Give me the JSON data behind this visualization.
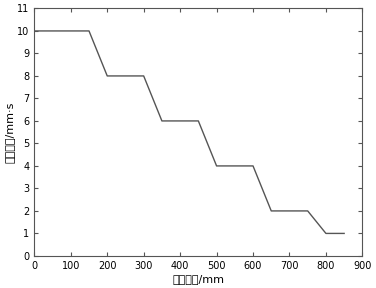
{
  "x": [
    0,
    150,
    150,
    200,
    200,
    300,
    300,
    350,
    350,
    450,
    450,
    500,
    500,
    600,
    600,
    650,
    650,
    750,
    750,
    800,
    800,
    850
  ],
  "y": [
    10,
    10,
    10,
    8,
    8,
    8,
    8,
    6,
    6,
    6,
    6,
    4,
    4,
    4,
    4,
    2,
    2,
    2,
    2,
    1,
    1,
    1
  ],
  "xlim": [
    0,
    900
  ],
  "ylim": [
    0,
    11
  ],
  "xticks": [
    0,
    100,
    200,
    300,
    400,
    500,
    600,
    700,
    800,
    900
  ],
  "yticks": [
    0,
    1,
    2,
    3,
    4,
    5,
    6,
    7,
    8,
    9,
    10,
    11
  ],
  "xlabel": "挤压行程/mm",
  "ylabel": "挤压速度/mm·s",
  "line_color": "#555555",
  "line_width": 1.0,
  "bg_color": "#ffffff",
  "font_size_label": 8,
  "font_size_tick": 7
}
